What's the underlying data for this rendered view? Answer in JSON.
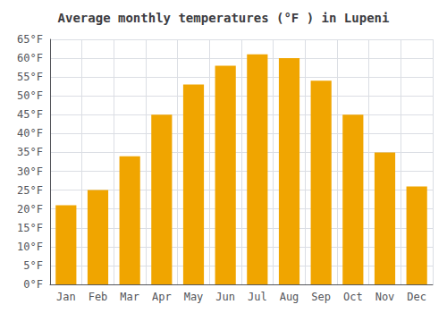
{
  "chart_data": {
    "type": "bar",
    "title": "Average monthly temperatures (°F ) in Lupeni",
    "categories": [
      "Jan",
      "Feb",
      "Mar",
      "Apr",
      "May",
      "Jun",
      "Jul",
      "Aug",
      "Sep",
      "Oct",
      "Nov",
      "Dec"
    ],
    "values": [
      21,
      25,
      34,
      45,
      53,
      58,
      61,
      60,
      54,
      45,
      35,
      26
    ],
    "color": "#F0A500",
    "ylim": [
      0,
      65
    ],
    "yticks": [
      {
        "value": 0,
        "label": "0°F"
      },
      {
        "value": 5,
        "label": "5°F"
      },
      {
        "value": 10,
        "label": "10°F"
      },
      {
        "value": 15,
        "label": "15°F"
      },
      {
        "value": 20,
        "label": "20°F"
      },
      {
        "value": 25,
        "label": "25°F"
      },
      {
        "value": 30,
        "label": "30°F"
      },
      {
        "value": 35,
        "label": "35°F"
      },
      {
        "value": 40,
        "label": "40°F"
      },
      {
        "value": 45,
        "label": "45°F"
      },
      {
        "value": 50,
        "label": "50°F"
      },
      {
        "value": 55,
        "label": "55°F"
      },
      {
        "value": 60,
        "label": "60°F"
      },
      {
        "value": 65,
        "label": "65°F"
      }
    ],
    "grid": true
  }
}
